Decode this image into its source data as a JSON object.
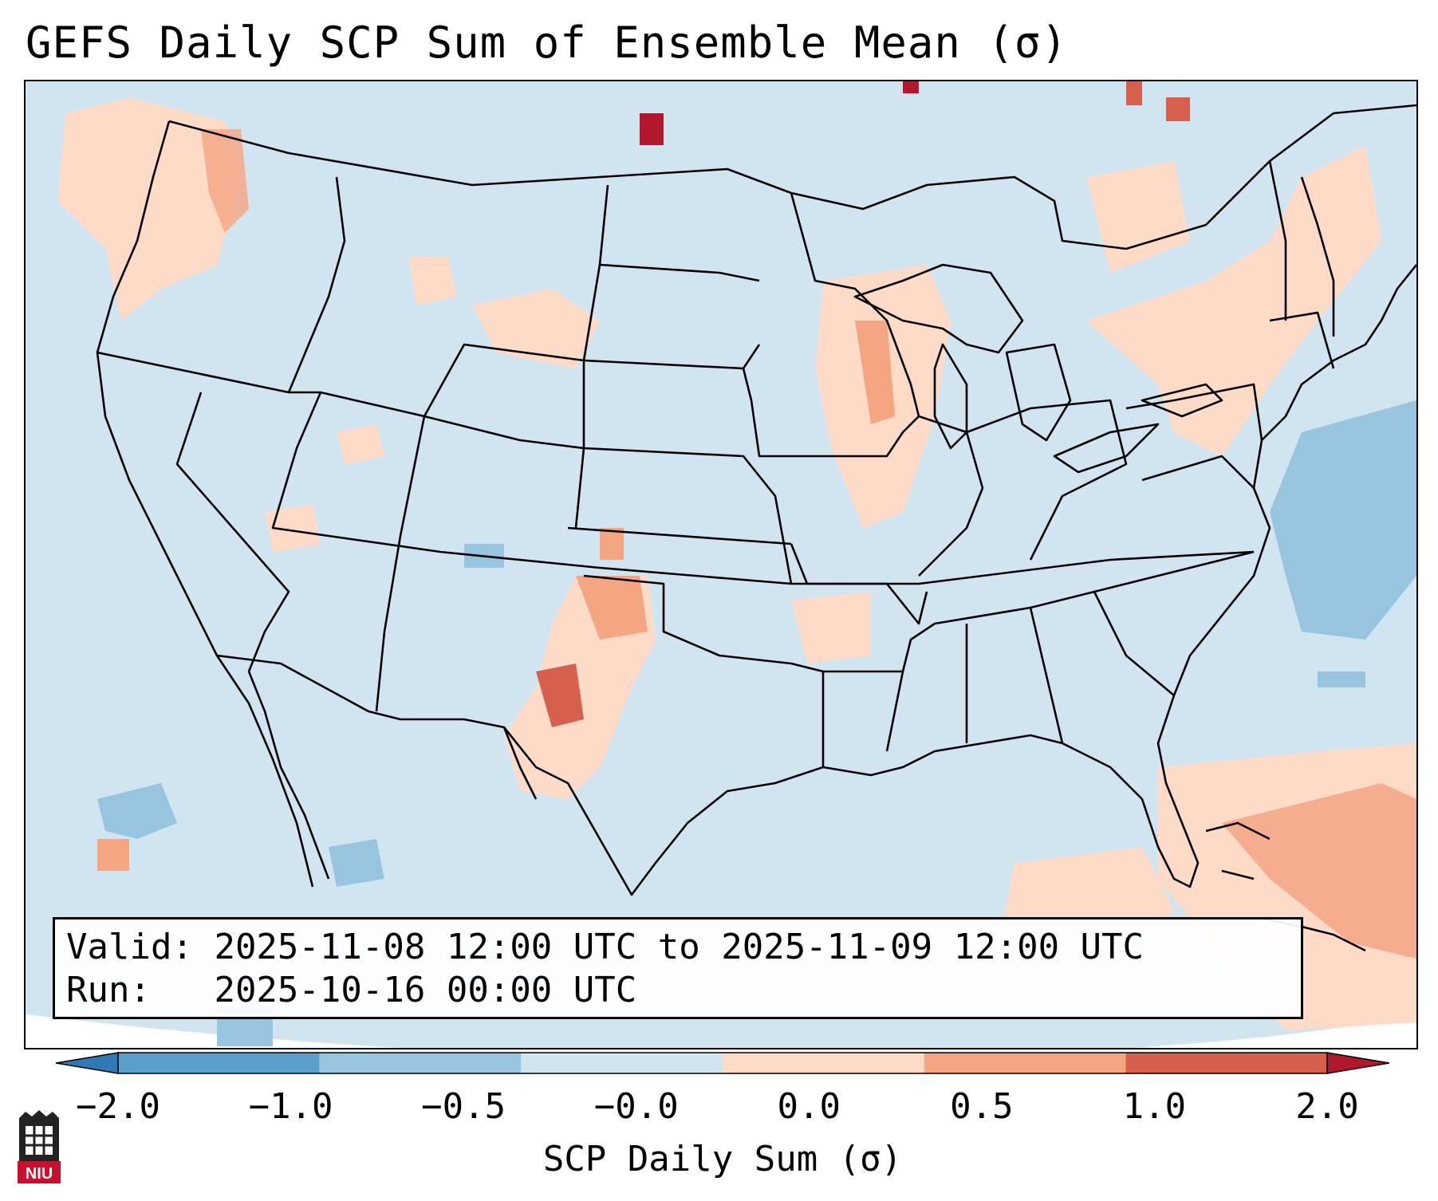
{
  "title": "GEFS Daily SCP Sum of Ensemble Mean (σ)",
  "info": {
    "valid_label": "Valid:",
    "valid_value": "2025-11-08 12:00 UTC to 2025-11-09 12:00 UTC",
    "run_label": "Run:",
    "run_value": "2025-10-16 00:00 UTC"
  },
  "colorbar": {
    "label": "SCP Daily Sum (σ)",
    "ticks": [
      "−2.0",
      "−1.0",
      "−0.5",
      "−0.0",
      "0.0",
      "0.5",
      "1.0",
      "2.0"
    ],
    "colors": [
      "#2f79b5",
      "#5b9fcd",
      "#97c4df",
      "#d1e5f0",
      "#fddbc7",
      "#f4a582",
      "#d6604d",
      "#b2182b"
    ],
    "extend": "both"
  },
  "map": {
    "region": "Continental United States",
    "background_color": "#d1e5f0",
    "projection": "Lambert Conformal"
  },
  "logo": {
    "text": "NIU"
  }
}
